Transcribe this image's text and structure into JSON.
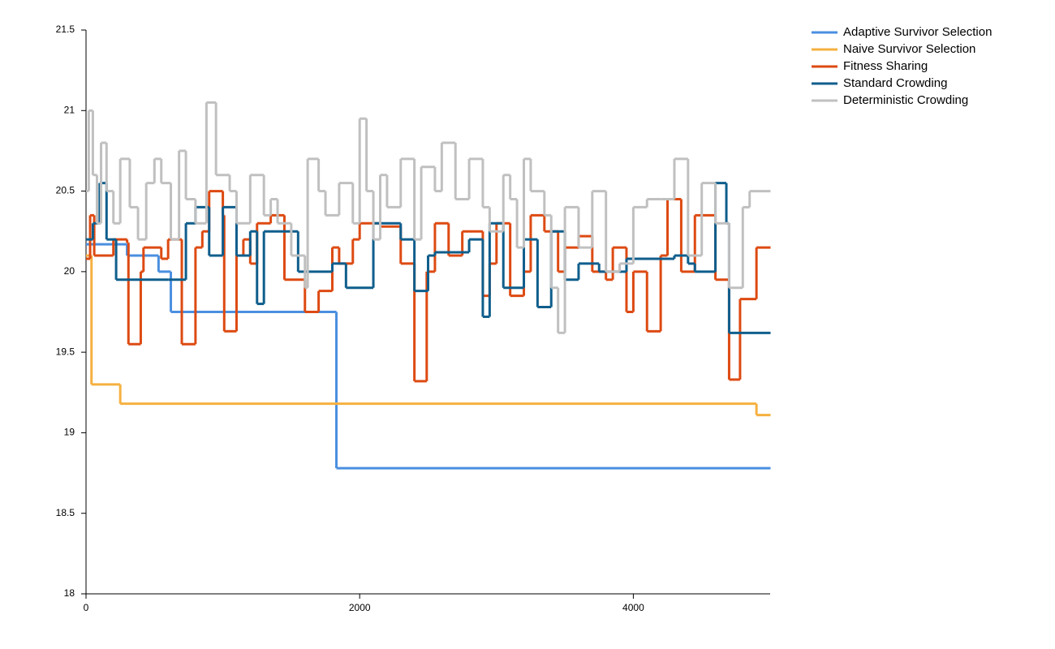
{
  "chart_data": {
    "type": "line",
    "step": "after",
    "legend": "top-right",
    "line_width": 3,
    "xlim": [
      0,
      5000
    ],
    "xticks": [
      0,
      2000,
      4000
    ],
    "ylim": [
      18,
      21.5
    ],
    "yticks": [
      18,
      18.5,
      19,
      19.5,
      20,
      20.5,
      21,
      21.5
    ],
    "series": [
      {
        "name": "Adaptive Survivor Selection",
        "color": "#4a8fe0",
        "x": [
          0,
          300,
          530,
          620,
          1830,
          5000
        ],
        "values": [
          20.17,
          20.1,
          20.0,
          19.75,
          18.78,
          18.78
        ]
      },
      {
        "name": "Naive Survivor Selection",
        "color": "#f5b040",
        "x": [
          0,
          40,
          250,
          4900,
          5000
        ],
        "values": [
          20.1,
          19.3,
          19.18,
          19.11,
          19.11
        ]
      },
      {
        "name": "Fitness Sharing",
        "color": "#dd4a12",
        "x": [
          0,
          30,
          60,
          200,
          300,
          310,
          400,
          420,
          550,
          600,
          700,
          800,
          850,
          900,
          1000,
          1010,
          1100,
          1150,
          1200,
          1250,
          1350,
          1450,
          1600,
          1700,
          1800,
          1850,
          1950,
          2000,
          2150,
          2300,
          2400,
          2490,
          2550,
          2650,
          2750,
          2900,
          2950,
          3000,
          3100,
          3200,
          3250,
          3350,
          3450,
          3500,
          3600,
          3700,
          3800,
          3850,
          3950,
          4000,
          4100,
          4200,
          4250,
          4350,
          4450,
          4600,
          4700,
          4780,
          4900,
          5000
        ],
        "values": [
          20.08,
          20.35,
          20.1,
          20.2,
          20.18,
          19.55,
          20.0,
          20.15,
          20.08,
          20.2,
          19.55,
          20.15,
          20.25,
          20.5,
          20.35,
          19.63,
          20.1,
          20.2,
          20.05,
          20.3,
          20.35,
          19.95,
          19.75,
          19.88,
          20.15,
          20.05,
          20.2,
          20.3,
          20.28,
          20.05,
          19.32,
          20.0,
          20.3,
          20.1,
          20.25,
          19.85,
          20.05,
          20.3,
          19.85,
          20.0,
          20.35,
          20.25,
          20.0,
          20.15,
          20.22,
          20.0,
          19.95,
          20.15,
          19.75,
          20.0,
          19.63,
          20.1,
          20.45,
          20.0,
          20.35,
          19.95,
          19.33,
          19.83,
          20.15,
          20.15
        ]
      },
      {
        "name": "Standard Crowding",
        "color": "#0f5e8c",
        "x": [
          0,
          50,
          100,
          150,
          220,
          600,
          730,
          800,
          900,
          1000,
          1100,
          1200,
          1250,
          1300,
          1550,
          1800,
          1900,
          2100,
          2300,
          2400,
          2500,
          2550,
          2800,
          2900,
          2950,
          3050,
          3200,
          3300,
          3400,
          3500,
          3600,
          3750,
          3950,
          4300,
          4400,
          4450,
          4600,
          4680,
          4700,
          5000
        ],
        "values": [
          20.2,
          20.3,
          20.55,
          20.2,
          19.95,
          19.95,
          20.3,
          20.4,
          20.1,
          20.4,
          20.1,
          20.25,
          19.8,
          20.25,
          20.0,
          20.05,
          19.9,
          20.3,
          20.2,
          19.88,
          20.1,
          20.12,
          20.2,
          19.72,
          20.3,
          19.9,
          20.2,
          19.78,
          20.25,
          19.95,
          20.05,
          20.0,
          20.08,
          20.1,
          20.05,
          20.0,
          20.55,
          20.3,
          19.62,
          19.62
        ]
      },
      {
        "name": "Deterministic Crowding",
        "color": "#c0c0c0",
        "x": [
          0,
          20,
          50,
          80,
          110,
          150,
          200,
          250,
          320,
          380,
          440,
          500,
          550,
          620,
          680,
          730,
          800,
          880,
          950,
          1050,
          1100,
          1200,
          1300,
          1350,
          1400,
          1500,
          1600,
          1620,
          1700,
          1750,
          1850,
          1950,
          2000,
          2050,
          2100,
          2150,
          2200,
          2300,
          2400,
          2450,
          2550,
          2600,
          2700,
          2800,
          2900,
          2950,
          3050,
          3100,
          3150,
          3200,
          3250,
          3350,
          3400,
          3450,
          3500,
          3600,
          3700,
          3800,
          3900,
          4000,
          4100,
          4200,
          4300,
          4400,
          4500,
          4600,
          4700,
          4800,
          4850,
          5000
        ],
        "values": [
          20.5,
          21.0,
          20.6,
          20.3,
          20.8,
          20.5,
          20.3,
          20.7,
          20.4,
          20.2,
          20.55,
          20.7,
          20.55,
          20.2,
          20.75,
          20.45,
          20.3,
          21.05,
          20.6,
          20.5,
          20.3,
          20.6,
          20.35,
          20.45,
          20.3,
          20.1,
          19.9,
          20.7,
          20.5,
          20.35,
          20.55,
          20.3,
          20.95,
          20.5,
          20.2,
          20.6,
          20.4,
          20.7,
          20.2,
          20.65,
          20.5,
          20.8,
          20.45,
          20.7,
          20.4,
          20.25,
          20.6,
          20.45,
          20.15,
          20.7,
          20.5,
          20.35,
          19.9,
          19.62,
          20.4,
          20.15,
          20.5,
          20.0,
          20.05,
          20.4,
          20.45,
          20.45,
          20.7,
          20.1,
          20.55,
          20.3,
          19.9,
          20.4,
          20.5,
          20.5
        ]
      }
    ]
  }
}
